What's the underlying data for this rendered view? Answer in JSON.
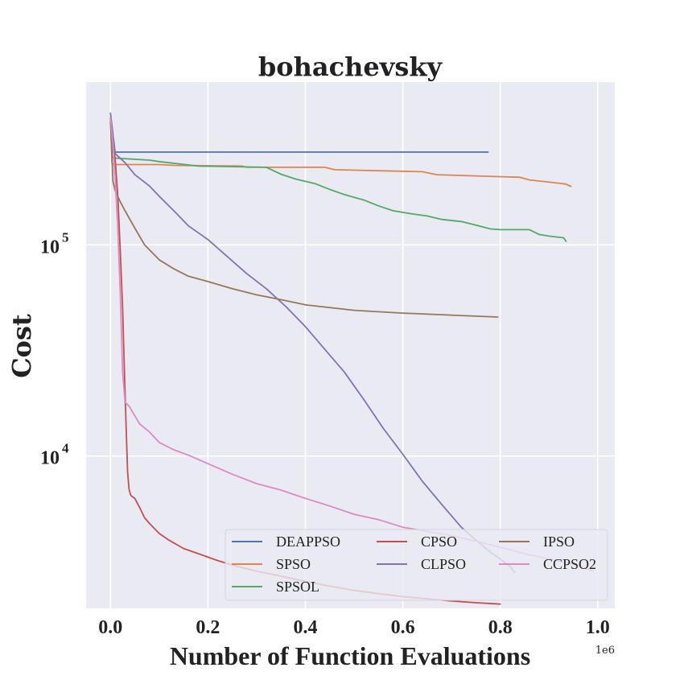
{
  "chart_data": {
    "type": "line",
    "title": "bohachevsky",
    "xlabel": "Number of Function Evaluations",
    "ylabel": "Cost",
    "x_offset_label": "1e6",
    "xscale": "linear",
    "yscale": "log",
    "xlim": [
      -0.05,
      1.035
    ],
    "ylim": [
      1900,
      590000
    ],
    "x_ticks": [
      0.0,
      0.2,
      0.4,
      0.6,
      0.8,
      1.0
    ],
    "x_tick_labels": [
      "0.0",
      "0.2",
      "0.4",
      "0.6",
      "0.8",
      "1.0"
    ],
    "y_ticks": [
      {
        "value": 10000,
        "base": "10",
        "exp": "4"
      },
      {
        "value": 100000,
        "base": "10",
        "exp": "5"
      }
    ],
    "grid": true,
    "background": "#EAEAF2",
    "legend": {
      "placement": "lower-right",
      "columns": 3
    },
    "series": [
      {
        "name": "DEAPPSO",
        "color": "#4C72B0",
        "x": [
          0,
          0.005,
          0.01,
          0.775
        ],
        "y": [
          400000,
          275000,
          275000,
          275000
        ]
      },
      {
        "name": "SPSO",
        "color": "#DD8452",
        "x": [
          0,
          0.003,
          0.005,
          0.1,
          0.13,
          0.27,
          0.28,
          0.44,
          0.46,
          0.64,
          0.67,
          0.84,
          0.86,
          0.92,
          0.935,
          0.945
        ],
        "y": [
          400000,
          245000,
          240000,
          240000,
          238000,
          236000,
          233000,
          233000,
          227000,
          222000,
          215000,
          209000,
          203000,
          196000,
          194000,
          189000
        ]
      },
      {
        "name": "SPSOL",
        "color": "#55A868",
        "x": [
          0,
          0.003,
          0.005,
          0.08,
          0.1,
          0.12,
          0.18,
          0.32,
          0.35,
          0.38,
          0.42,
          0.45,
          0.48,
          0.52,
          0.55,
          0.58,
          0.62,
          0.65,
          0.68,
          0.72,
          0.75,
          0.78,
          0.8,
          0.86,
          0.88,
          0.9,
          0.93,
          0.935
        ],
        "y": [
          400000,
          265000,
          258000,
          252000,
          248000,
          245000,
          236000,
          233000,
          216000,
          205000,
          195000,
          183000,
          173000,
          163000,
          153000,
          145000,
          140000,
          137000,
          132000,
          129000,
          124000,
          119000,
          118000,
          118000,
          112000,
          110000,
          108000,
          104000
        ]
      },
      {
        "name": "CPSO",
        "color": "#C44E52",
        "x": [
          0,
          0.005,
          0.01,
          0.015,
          0.02,
          0.025,
          0.03,
          0.035,
          0.038,
          0.04,
          0.042,
          0.05,
          0.06,
          0.07,
          0.08,
          0.1,
          0.12,
          0.15,
          0.18,
          0.22,
          0.26,
          0.3,
          0.35,
          0.4,
          0.45,
          0.5,
          0.55,
          0.6,
          0.65,
          0.7,
          0.75,
          0.8
        ],
        "y": [
          380000,
          320000,
          250000,
          170000,
          95000,
          50000,
          20000,
          8500,
          7000,
          6700,
          6500,
          6300,
          5700,
          5100,
          4800,
          4300,
          4000,
          3650,
          3450,
          3200,
          3000,
          2850,
          2700,
          2550,
          2420,
          2310,
          2230,
          2160,
          2110,
          2060,
          2020,
          1990
        ]
      },
      {
        "name": "CLPSO",
        "color": "#8172B3",
        "x": [
          0,
          0.01,
          0.03,
          0.05,
          0.08,
          0.1,
          0.13,
          0.16,
          0.2,
          0.24,
          0.28,
          0.32,
          0.36,
          0.4,
          0.44,
          0.48,
          0.52,
          0.56,
          0.6,
          0.64,
          0.68,
          0.72,
          0.75,
          0.78,
          0.8,
          0.82,
          0.83
        ],
        "y": [
          420000,
          270000,
          245000,
          215000,
          190000,
          170000,
          145000,
          123000,
          106000,
          88000,
          73000,
          62000,
          51000,
          41000,
          32000,
          25000,
          18500,
          13500,
          10200,
          7600,
          5900,
          4600,
          4000,
          3500,
          3250,
          3000,
          2800
        ]
      },
      {
        "name": "IPSO",
        "color": "#937860",
        "x": [
          0,
          0.005,
          0.01,
          0.02,
          0.03,
          0.05,
          0.07,
          0.1,
          0.13,
          0.16,
          0.2,
          0.25,
          0.3,
          0.35,
          0.4,
          0.5,
          0.6,
          0.7,
          0.795
        ],
        "y": [
          400000,
          200000,
          180000,
          160000,
          145000,
          120000,
          100000,
          85000,
          77000,
          71000,
          67000,
          62000,
          58000,
          55000,
          52000,
          49000,
          47500,
          46500,
          45500
        ]
      },
      {
        "name": "CCPSO2",
        "color": "#DA8BC3",
        "x": [
          0,
          0.005,
          0.01,
          0.015,
          0.02,
          0.025,
          0.03,
          0.035,
          0.04,
          0.045,
          0.05,
          0.06,
          0.08,
          0.1,
          0.13,
          0.16,
          0.2,
          0.25,
          0.3,
          0.35,
          0.4,
          0.45,
          0.5,
          0.55,
          0.6,
          0.65,
          0.7,
          0.75,
          0.8,
          0.85,
          0.9,
          0.95,
          0.99
        ],
        "y": [
          400000,
          300000,
          200000,
          120000,
          60000,
          25000,
          18000,
          17500,
          17000,
          16200,
          15500,
          14200,
          13000,
          11600,
          10700,
          10100,
          9200,
          8200,
          7400,
          6900,
          6300,
          5800,
          5300,
          5000,
          4600,
          4400,
          4200,
          3950,
          3700,
          3450,
          3250,
          3080,
          2850
        ]
      }
    ]
  }
}
